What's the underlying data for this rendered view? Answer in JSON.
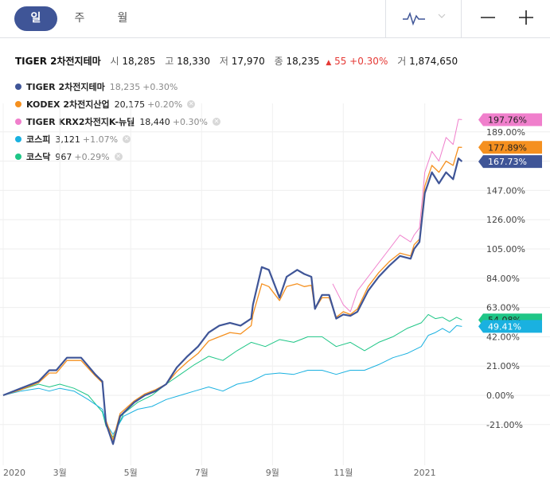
{
  "toolbar": {
    "tabs": [
      "일",
      "주",
      "월"
    ],
    "active_tab": 0,
    "chart_type_icon": "line-wave-icon",
    "zoom_out_icon": "minus-icon",
    "zoom_in_icon": "plus-icon"
  },
  "header": {
    "name": "TIGER 2차전지테마",
    "open_label": "시",
    "open": "18,285",
    "high_label": "고",
    "high": "18,330",
    "low_label": "저",
    "low": "17,970",
    "close_label": "종",
    "close": "18,235",
    "change": "55",
    "change_pct": "+0.30%",
    "volume_label": "거",
    "volume": "1,874,650",
    "up_color": "#e53935"
  },
  "legend": [
    {
      "name": "TIGER 2차전지테마",
      "price": "18,235",
      "change": "+0.30%",
      "color": "#3f5597",
      "removable": false
    },
    {
      "name": "KODEX 2차전지산업",
      "price": "20,175",
      "change": "+0.20%",
      "color": "#f5901f",
      "removable": true
    },
    {
      "name": "TIGER KRX2차전지K-뉴딜",
      "price": "18,440",
      "change": "+0.30%",
      "color": "#f07fcc",
      "removable": true
    },
    {
      "name": "코스피",
      "price": "3,121",
      "change": "+1.07%",
      "color": "#1ab1e0",
      "removable": true
    },
    {
      "name": "코스닥",
      "price": "967",
      "change": "+0.29%",
      "color": "#1fc687",
      "removable": true
    }
  ],
  "chart_data": {
    "type": "line",
    "y_unit": "%",
    "ylim": [
      -35,
      212
    ],
    "y_ticks": [
      "189.00%",
      "168.00%",
      "147.00%",
      "126.00%",
      "105.00%",
      "84.00%",
      "63.00%",
      "42.00%",
      "21.00%",
      "0.00%",
      "-21.00%"
    ],
    "y_tick_values": [
      189,
      168,
      147,
      126,
      105,
      84,
      63,
      42,
      21,
      0,
      -21
    ],
    "x_ticks": [
      "2020",
      "3월",
      "5월",
      "7월",
      "9월",
      "11월",
      "2021"
    ],
    "x_tick_positions": [
      0.0,
      1.6,
      3.6,
      5.6,
      7.6,
      9.6,
      11.9
    ],
    "x_range": [
      0,
      13.3
    ],
    "end_labels": [
      {
        "series": 2,
        "text": "197.76%",
        "value": 197.76,
        "color": "#f07fcc"
      },
      {
        "series": 1,
        "text": "177.89%",
        "value": 177.89,
        "color": "#f5901f"
      },
      {
        "series": 0,
        "text": "167.73%",
        "value": 167.73,
        "color": "#3f5597"
      },
      {
        "series": 4,
        "text": "54.08%",
        "value": 54.08,
        "color": "#1fc687"
      },
      {
        "series": 3,
        "text": "49.41%",
        "value": 49.41,
        "color": "#1ab1e0"
      }
    ],
    "series": [
      {
        "name": "TIGER 2차전지테마",
        "color": "#3f5597",
        "width": 2.2,
        "x": [
          0,
          0.5,
          1.0,
          1.3,
          1.5,
          1.8,
          2.2,
          2.6,
          2.8,
          2.9,
          3.1,
          3.3,
          3.7,
          4.0,
          4.3,
          4.6,
          4.9,
          5.2,
          5.5,
          5.8,
          6.1,
          6.4,
          6.7,
          7.0,
          7.05,
          7.3,
          7.5,
          7.8,
          8.0,
          8.3,
          8.5,
          8.7,
          8.8,
          9.0,
          9.2,
          9.4,
          9.6,
          9.8,
          10.0,
          10.3,
          10.6,
          10.9,
          11.2,
          11.5,
          11.6,
          11.75,
          11.9,
          12.1,
          12.3,
          12.5,
          12.7,
          12.85,
          12.95
        ],
        "y": [
          0,
          5,
          10,
          18,
          18,
          27,
          27,
          15,
          10,
          -20,
          -35,
          -15,
          -5,
          0,
          3,
          8,
          20,
          28,
          35,
          45,
          50,
          52,
          50,
          55,
          65,
          92,
          90,
          70,
          85,
          90,
          87,
          85,
          62,
          72,
          72,
          55,
          58,
          57,
          60,
          75,
          85,
          93,
          100,
          98,
          105,
          110,
          145,
          160,
          152,
          160,
          155,
          170,
          167.73
        ]
      },
      {
        "name": "KODEX 2차전지산업",
        "color": "#f5901f",
        "width": 1.3,
        "x": [
          0,
          0.5,
          1.0,
          1.3,
          1.5,
          1.8,
          2.2,
          2.6,
          2.8,
          2.9,
          3.1,
          3.3,
          3.7,
          4.0,
          4.3,
          4.6,
          4.9,
          5.2,
          5.5,
          5.8,
          6.1,
          6.4,
          6.7,
          7.0,
          7.05,
          7.3,
          7.5,
          7.8,
          8.0,
          8.3,
          8.5,
          8.7,
          8.8,
          9.0,
          9.2,
          9.4,
          9.6,
          9.8,
          10.0,
          10.3,
          10.6,
          10.9,
          11.2,
          11.5,
          11.6,
          11.75,
          11.9,
          12.1,
          12.3,
          12.5,
          12.7,
          12.85,
          12.95
        ],
        "y": [
          0,
          4,
          9,
          16,
          16,
          25,
          25,
          14,
          9,
          -18,
          -32,
          -13,
          -4,
          1,
          4,
          8,
          17,
          24,
          30,
          39,
          42,
          45,
          44,
          50,
          58,
          80,
          78,
          68,
          78,
          80,
          78,
          79,
          62,
          70,
          70,
          56,
          60,
          58,
          62,
          78,
          88,
          96,
          102,
          100,
          108,
          112,
          150,
          165,
          160,
          168,
          165,
          178,
          177.89
        ]
      },
      {
        "name": "TIGER KRX2차전지K-뉴딜",
        "color": "#f07fcc",
        "width": 1.0,
        "x": [
          9.3,
          9.5,
          9.6,
          9.8,
          10.0,
          10.3,
          10.6,
          10.9,
          11.2,
          11.5,
          11.6,
          11.75,
          11.9,
          12.1,
          12.3,
          12.5,
          12.7,
          12.85,
          12.95
        ],
        "y": [
          80,
          70,
          65,
          60,
          75,
          85,
          95,
          105,
          115,
          110,
          115,
          120,
          160,
          175,
          168,
          185,
          180,
          198,
          197.76
        ]
      },
      {
        "name": "코스피",
        "color": "#1ab1e0",
        "width": 1.0,
        "x": [
          0,
          0.5,
          1.0,
          1.3,
          1.6,
          2.0,
          2.4,
          2.8,
          2.9,
          3.1,
          3.4,
          3.8,
          4.2,
          4.6,
          5.0,
          5.4,
          5.8,
          6.2,
          6.6,
          7.0,
          7.4,
          7.8,
          8.2,
          8.6,
          9.0,
          9.4,
          9.8,
          10.2,
          10.6,
          11.0,
          11.4,
          11.8,
          12.0,
          12.2,
          12.4,
          12.6,
          12.8,
          12.95
        ],
        "y": [
          0,
          3,
          5,
          3,
          5,
          3,
          -3,
          -10,
          -20,
          -28,
          -15,
          -10,
          -8,
          -3,
          0,
          3,
          6,
          3,
          8,
          10,
          15,
          16,
          15,
          18,
          18,
          15,
          18,
          18,
          22,
          27,
          30,
          35,
          43,
          45,
          48,
          45,
          50,
          49.41
        ]
      },
      {
        "name": "코스닥",
        "color": "#1fc687",
        "width": 1.0,
        "x": [
          0,
          0.5,
          1.0,
          1.3,
          1.6,
          2.0,
          2.4,
          2.8,
          2.9,
          3.1,
          3.4,
          3.8,
          4.2,
          4.6,
          5.0,
          5.4,
          5.8,
          6.2,
          6.6,
          7.0,
          7.4,
          7.8,
          8.2,
          8.6,
          9.0,
          9.4,
          9.8,
          10.2,
          10.6,
          11.0,
          11.4,
          11.8,
          12.0,
          12.2,
          12.4,
          12.6,
          12.8,
          12.95
        ],
        "y": [
          0,
          4,
          8,
          6,
          8,
          5,
          0,
          -12,
          -22,
          -30,
          -13,
          -5,
          0,
          8,
          15,
          22,
          28,
          25,
          32,
          38,
          35,
          40,
          38,
          42,
          42,
          35,
          38,
          32,
          38,
          42,
          48,
          52,
          58,
          55,
          56,
          53,
          56,
          54.08
        ]
      }
    ]
  }
}
